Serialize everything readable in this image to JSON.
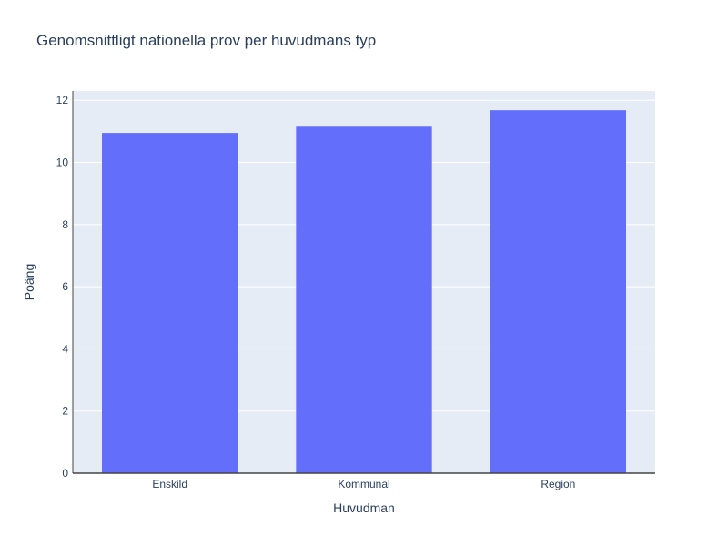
{
  "chart_data": {
    "type": "bar",
    "title": "Genomsnittligt nationella prov per huvudmans typ",
    "xlabel": "Huvudman",
    "ylabel": "Poäng",
    "categories": [
      "Enskild",
      "Kommunal",
      "Region"
    ],
    "values": [
      10.95,
      11.15,
      11.68
    ],
    "ylim": [
      0,
      12.3
    ],
    "yticks": [
      "0",
      "2",
      "4",
      "6",
      "8",
      "10",
      "12"
    ],
    "grid": true,
    "colors": {
      "bar": "#636efa",
      "plot_bg": "#e5ecf6",
      "grid": "#ffffff",
      "text": "#2a3f5f",
      "axis_line": "#444444"
    }
  }
}
